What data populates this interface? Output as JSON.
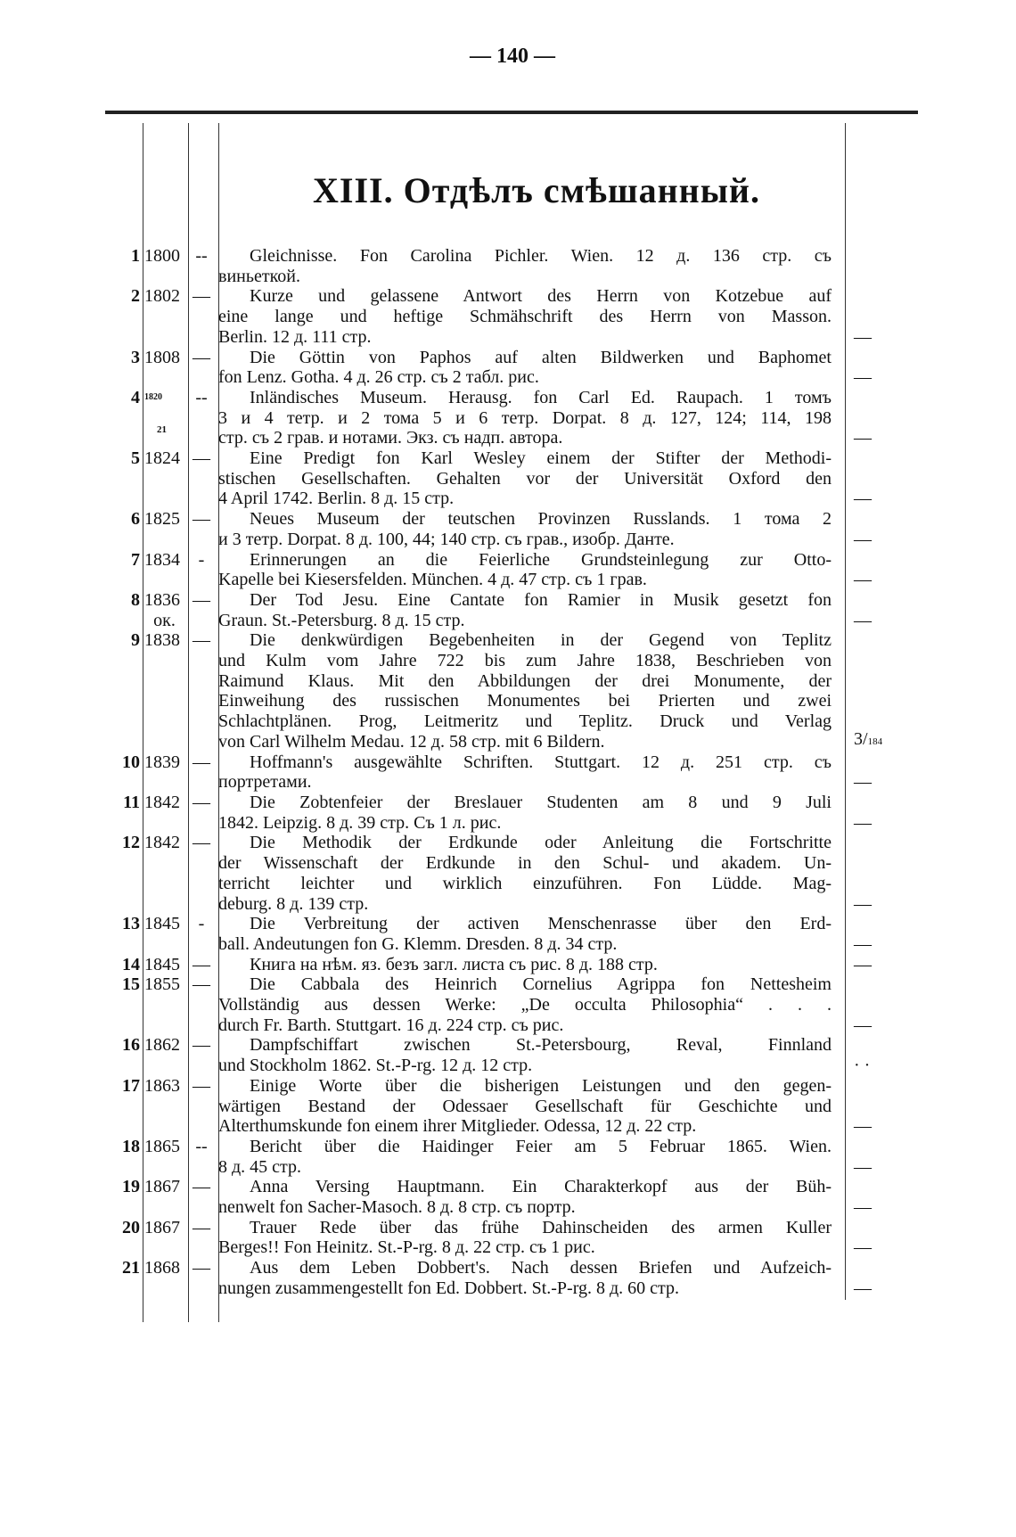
{
  "page_number": "— 140 —",
  "section_title": "XIII. Отдѣлъ смѣшанный.",
  "entries": [
    {
      "num": "1",
      "year": "1800",
      "dash": "--",
      "lines": [
        "Gleichnisse. Fon Carolina Pichler. Wien. 12 д. 136 стр. съ",
        "виньеткой."
      ],
      "margin": ""
    },
    {
      "num": "2",
      "year": "1802",
      "dash": "—",
      "lines": [
        "Kurze und gelassene Antwort des Herrn von Kotzebue auf",
        "eine lange und heftige Schmähschrift des Herrn von Masson.",
        "Berlin. 12 д. 111 стр."
      ],
      "margin": "—"
    },
    {
      "num": "3",
      "year": "1808",
      "dash": "—",
      "lines": [
        "Die Göttin von Paphos auf alten Bildwerken und Baphomet",
        "fon Lenz. Gotha. 4 д. 26 стр. съ 2 табл. рис."
      ],
      "margin": "—"
    },
    {
      "num": "4",
      "year_top": "1820",
      "year_bottom": "21",
      "dash": "--",
      "lines": [
        "Inländisches Museum. Herausg. fon Carl Ed. Raupach. 1 томъ",
        "3 и 4 тетр. и 2 тома 5 и 6 тетр. Dorpat. 8 д. 127, 124; 114, 198",
        "стр. съ 2 грав. и нотами. Экз. съ надп. автора."
      ],
      "margin": "—"
    },
    {
      "num": "5",
      "year": "1824",
      "dash": "—",
      "lines": [
        "Eine Predigt fon Karl Wesley einem der Stifter der Methodi-",
        "stischen Gesellschaften. Gehalten vor der Universität Oxford den",
        "4 April 1742. Berlin. 8 д. 15 стр."
      ],
      "margin": "—"
    },
    {
      "num": "6",
      "year": "1825",
      "dash": "—",
      "lines": [
        "Neues Museum der teutschen Provinzen Russlands. 1 тома 2",
        "и 3 тетр. Dorpat. 8 д. 100, 44; 140 стр. съ грав., изобр. Данте."
      ],
      "margin": "—"
    },
    {
      "num": "7",
      "year": "1834",
      "dash": "-",
      "lines": [
        "Erinnerungen an die Feierliche Grundsteinlegung zur Otto-",
        "Kapelle bei Kiesersfelden. München. 4 д. 47 стр. съ 1 грав."
      ],
      "margin": "—"
    },
    {
      "num": "8",
      "year": "1836",
      "year_note": "ок.",
      "dash": "—",
      "lines": [
        "Der Tod Jesu. Eine Cantate fon Ramier in Musik gesetzt fon",
        "Graun. St.-Petersburg. 8 д. 15 стр."
      ],
      "margin": "—"
    },
    {
      "num": "9",
      "year": "1838",
      "dash": "—",
      "lines": [
        "Die denkwürdigen Begebenheiten in der Gegend von Teplitz",
        "und Kulm vom Jahre 722 bis zum Jahre 1838, Beschrieben von",
        "Raimund Klaus. Mit den Abbildungen der drei Monumente, der",
        "Einweihung des russischen Monumentes bei Prierten und zwei",
        "Schlachtplänen. Prog, Leitmeritz und Teplitz. Druck und Verlag",
        "von Carl Wilhelm Medau. 12 д. 58 стр. mit 6 Bildern."
      ],
      "margin": "3/",
      "margin_small": "184"
    },
    {
      "num": "10",
      "year": "1839",
      "dash": "—",
      "lines": [
        "Hoffmann's ausgewählte Schriften. Stuttgart. 12 д. 251 стр. съ",
        "портретами."
      ],
      "margin": "—"
    },
    {
      "num": "11",
      "year": "1842",
      "dash": "—",
      "lines": [
        "Die Zobtenfeier der Breslauer Studenten am 8 und 9 Juli",
        "1842. Leipzig. 8 д. 39 стр. Съ 1 л. рис."
      ],
      "margin": "—"
    },
    {
      "num": "12",
      "year": "1842",
      "dash": "—",
      "lines": [
        "Die Methodik der Erdkunde oder Anleitung die Fortschritte",
        "der Wissenschaft der Erdkunde in den Schul- und akadem. Un-",
        "terricht leichter und wirklich einzuführen. Fon Lüdde. Mag-",
        "deburg. 8 д. 139 стр."
      ],
      "margin": "—"
    },
    {
      "num": "13",
      "year": "1845",
      "dash": "-",
      "lines": [
        "Die Verbreitung der activen Menschenrasse über den Erd-",
        "ball. Andeutungen fon G. Klemm. Dresden. 8 д. 34 стр."
      ],
      "margin": "—"
    },
    {
      "num": "14",
      "year": "1845",
      "dash": "—",
      "lines": [
        "Книга на нѣм. яз. безъ загл. листа съ рис. 8 д. 188 стр."
      ],
      "margin": "—"
    },
    {
      "num": "15",
      "year": "1855",
      "dash": "—",
      "lines": [
        "Die Cabbala des Heinrich Cornelius Agrippa fon Nettesheim",
        "Vollständig aus dessen Werke: „De occulta Philosophia“ . . .",
        "durch Fr. Barth. Stuttgart. 16 д. 224 стр. съ рис."
      ],
      "margin": "—"
    },
    {
      "num": "16",
      "year": "1862",
      "dash": "—",
      "lines": [
        "Dampfschiffart zwischen St.-Petersbourg, Reval, Finnland",
        "und Stockholm 1862. St.-P-rg. 12 д. 12 стр."
      ],
      "margin": "· ·"
    },
    {
      "num": "17",
      "year": "1863",
      "dash": "—",
      "lines": [
        "Einige Worte über die bisherigen Leistungen und den gegen-",
        "wärtigen Bestand der Odessaer Gesellschaft für Geschichte und",
        "Alterthumskunde fon einem ihrer Mitglieder. Odessa, 12 д. 22 стр."
      ],
      "margin": "—"
    },
    {
      "num": "18",
      "year": "1865",
      "dash": "--",
      "lines": [
        "Bericht über die Haidinger Feier am 5 Februar 1865. Wien.",
        "8 д. 45 стр."
      ],
      "margin": "—"
    },
    {
      "num": "19",
      "year": "1867",
      "dash": "—",
      "lines": [
        "Anna Versing Hauptmann. Ein Charakterkopf aus der Büh-",
        "nenwelt fon Sacher-Masoch. 8 д. 8 стр. съ портр."
      ],
      "margin": "—"
    },
    {
      "num": "20",
      "year": "1867",
      "dash": "—",
      "lines": [
        "Trauer Rede über das frühe Dahinscheiden des armen Kuller",
        "Berges!! Fon Heinitz. St.-P-rg. 8 д. 22 стр. съ 1 рис."
      ],
      "margin": "—"
    },
    {
      "num": "21",
      "year": "1868",
      "dash": "—",
      "lines": [
        "Aus dem Leben Dobbert's. Nach dessen Briefen und Aufzeich-",
        "nungen zusammengestellt fon Ed. Dobbert. St.-P-rg. 8 д. 60 стр."
      ],
      "margin": "—"
    }
  ]
}
